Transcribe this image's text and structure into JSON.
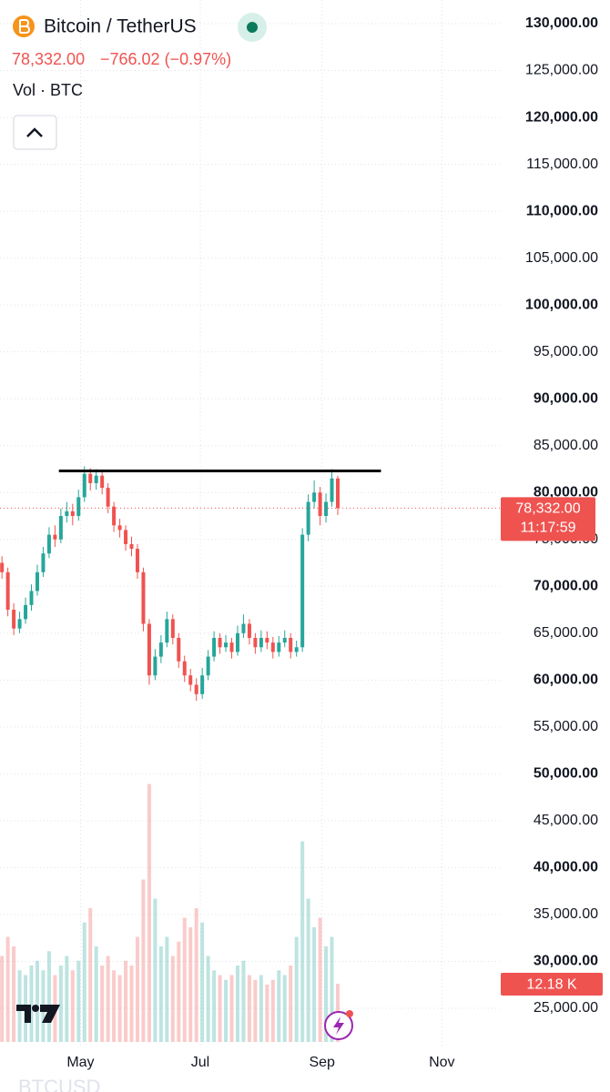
{
  "header": {
    "symbol": "Bitcoin / TetherUS",
    "price": "78,332.00",
    "change": "−766.02 (−0.97%)",
    "volume_label": "Vol · BTC",
    "watermark": "BTCUSD"
  },
  "chart_data": {
    "type": "candlestick",
    "up_color": "#26a69a",
    "down_color": "#ef5350",
    "grid": true,
    "xlim": [
      80,
      335
    ],
    "xticks": [
      {
        "value": 121,
        "label": "May"
      },
      {
        "value": 182,
        "label": "Jul"
      },
      {
        "value": 244,
        "label": "Sep"
      },
      {
        "value": 305,
        "label": "Nov"
      }
    ],
    "ylim": [
      25000,
      130000
    ],
    "yticks": [
      {
        "value": 25000,
        "label": "25,000.00"
      },
      {
        "value": 30000,
        "label": "30,000.00"
      },
      {
        "value": 35000,
        "label": "35,000.00"
      },
      {
        "value": 40000,
        "label": "40,000.00"
      },
      {
        "value": 45000,
        "label": "45,000.00"
      },
      {
        "value": 50000,
        "label": "50,000.00"
      },
      {
        "value": 55000,
        "label": "55,000.00"
      },
      {
        "value": 60000,
        "label": "60,000.00"
      },
      {
        "value": 65000,
        "label": "65,000.00"
      },
      {
        "value": 70000,
        "label": "70,000.00"
      },
      {
        "value": 75000,
        "label": "75,000.00"
      },
      {
        "value": 80000,
        "label": "80,000.00"
      },
      {
        "value": 85000,
        "label": "85,000.00"
      },
      {
        "value": 90000,
        "label": "90,000.00"
      },
      {
        "value": 95000,
        "label": "95,000.00"
      },
      {
        "value": 100000,
        "label": "100,000.00"
      },
      {
        "value": 105000,
        "label": "105,000.00"
      },
      {
        "value": 110000,
        "label": "110,000.00"
      },
      {
        "value": 115000,
        "label": "115,000.00"
      },
      {
        "value": 120000,
        "label": "120,000.00"
      },
      {
        "value": 125000,
        "label": "125,000.00"
      },
      {
        "value": 130000,
        "label": "130,000.00"
      }
    ],
    "x": [
      81,
      84,
      87,
      90,
      93,
      96,
      99,
      102,
      105,
      108,
      111,
      114,
      117,
      120,
      123,
      126,
      129,
      132,
      135,
      138,
      141,
      144,
      147,
      150,
      153,
      156,
      159,
      162,
      165,
      168,
      171,
      174,
      177,
      180,
      183,
      186,
      189,
      192,
      195,
      198,
      201,
      204,
      207,
      210,
      213,
      216,
      219,
      222,
      225,
      228,
      231,
      234,
      237,
      240,
      243,
      246,
      249,
      252
    ],
    "open": [
      72500,
      71500,
      67500,
      65500,
      66500,
      68000,
      69500,
      71500,
      73500,
      75500,
      75000,
      77500,
      78000,
      77500,
      79500,
      82000,
      81000,
      81800,
      80500,
      78500,
      76500,
      76000,
      74500,
      74000,
      71500,
      66000,
      60500,
      62500,
      64000,
      66500,
      64500,
      62000,
      60500,
      59500,
      58500,
      60500,
      62500,
      64500,
      63500,
      64000,
      63000,
      65000,
      66000,
      64500,
      63500,
      64500,
      64000,
      63000,
      64000,
      64500,
      63000,
      63500,
      75500,
      79000,
      80000,
      77500,
      79000,
      81500
    ],
    "high": [
      73200,
      72000,
      68200,
      67300,
      68800,
      70200,
      72300,
      74200,
      76300,
      76500,
      78300,
      79000,
      78800,
      80300,
      82800,
      82600,
      82500,
      82200,
      81000,
      79000,
      77200,
      76500,
      75300,
      74500,
      72000,
      66500,
      63300,
      64800,
      67300,
      67000,
      65000,
      62600,
      61200,
      60200,
      61300,
      63200,
      65200,
      65000,
      64800,
      64500,
      65800,
      67000,
      66500,
      65000,
      65300,
      65200,
      64600,
      64700,
      65300,
      65000,
      64200,
      76200,
      79800,
      81300,
      80600,
      79900,
      82500,
      81800
    ],
    "low": [
      70800,
      66800,
      64800,
      65000,
      66000,
      67400,
      69000,
      71000,
      73000,
      74200,
      74600,
      76800,
      76500,
      77000,
      79000,
      80200,
      80300,
      79800,
      77800,
      75800,
      75200,
      73800,
      73200,
      70800,
      65200,
      59500,
      60000,
      61800,
      63500,
      63800,
      61300,
      59800,
      58800,
      57800,
      58000,
      60000,
      62000,
      62800,
      63000,
      62300,
      62600,
      64500,
      63800,
      62800,
      63000,
      63300,
      62300,
      62500,
      63500,
      62300,
      62500,
      63000,
      74800,
      78300,
      76500,
      76800,
      78500,
      77600
    ],
    "close": [
      71500,
      67500,
      65500,
      66500,
      68000,
      69500,
      71500,
      73500,
      75500,
      75000,
      77500,
      78000,
      77500,
      79500,
      82000,
      81000,
      81800,
      80500,
      78500,
      76500,
      76000,
      74500,
      74000,
      71500,
      66000,
      60500,
      62500,
      64000,
      66500,
      64500,
      62000,
      60500,
      59500,
      58500,
      60500,
      62500,
      64500,
      63500,
      64000,
      63000,
      65000,
      66000,
      64500,
      63500,
      64500,
      64000,
      63000,
      64000,
      64500,
      63000,
      63500,
      75500,
      79000,
      80000,
      77500,
      79000,
      81500,
      78332
    ],
    "volume": [
      18,
      22,
      20,
      15,
      14,
      16,
      17,
      15,
      19,
      14,
      16,
      18,
      15,
      17,
      25,
      28,
      20,
      16,
      18,
      15,
      14,
      17,
      16,
      22,
      34,
      54,
      30,
      20,
      22,
      18,
      21,
      26,
      24,
      28,
      25,
      18,
      15,
      14,
      13,
      14,
      16,
      17,
      14,
      13,
      14,
      12,
      13,
      15,
      14,
      16,
      22,
      42,
      30,
      24,
      26,
      20,
      22,
      12.18
    ],
    "volume_ylim": [
      0,
      60
    ],
    "drawn_line": {
      "x": [
        110,
        274
      ],
      "y": 82300
    },
    "price_tag": {
      "value": 78332,
      "label": "78,332.00",
      "countdown": "11:17:59"
    },
    "volume_tag": {
      "value": 12.18,
      "label": "12.18 K"
    }
  }
}
